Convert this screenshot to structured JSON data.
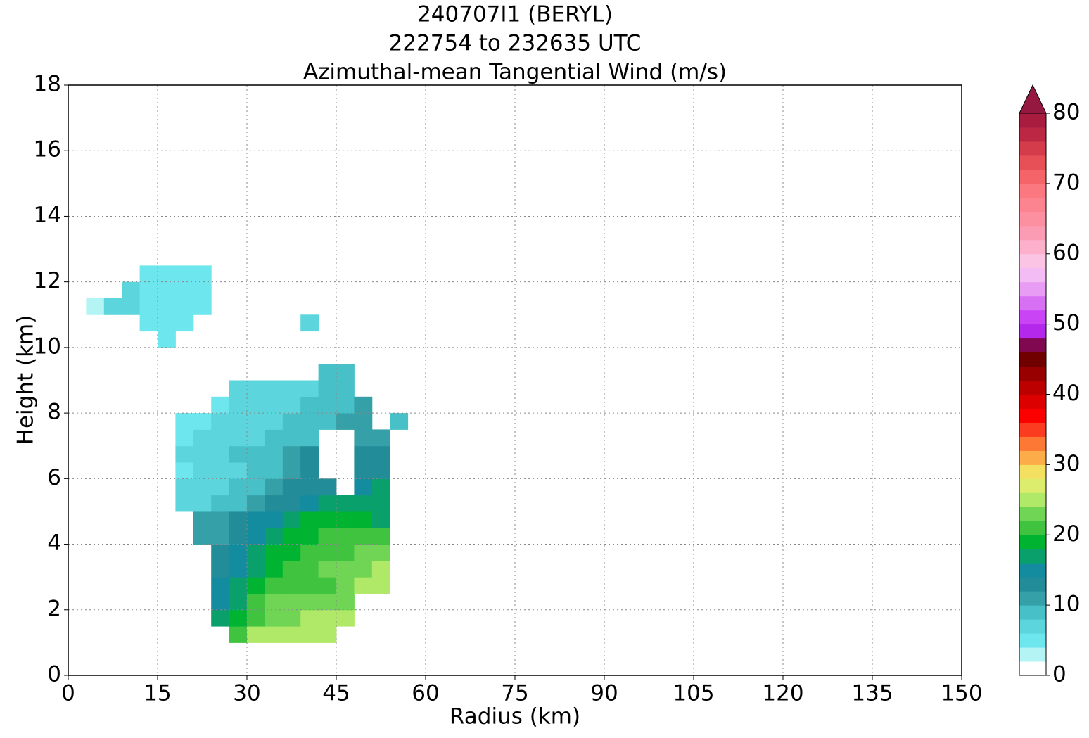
{
  "chart_data": {
    "type": "contourf",
    "title": [
      "240707I1 (BERYL)",
      "222754 to 232635 UTC",
      "Azimuthal-mean Tangential Wind (m/s)"
    ],
    "x_label": "Radius (km)",
    "y_label": "Height (km)",
    "xlim": [
      0,
      150
    ],
    "ylim": [
      0,
      18
    ],
    "xticks": [
      0,
      15,
      30,
      45,
      60,
      75,
      90,
      105,
      120,
      135,
      150
    ],
    "yticks": [
      0,
      2,
      4,
      6,
      8,
      10,
      12,
      14,
      16,
      18
    ],
    "grid": true,
    "x": [
      4.5,
      7.5,
      10.5,
      13.5,
      16.5,
      19.5,
      22.5,
      25.5,
      28.5,
      31.5,
      34.5,
      37.5,
      40.5,
      43.5,
      46.5,
      49.5,
      52.5,
      55.5
    ],
    "y": [
      1.25,
      1.75,
      2.25,
      2.75,
      3.25,
      3.75,
      4.25,
      4.75,
      5.25,
      5.75,
      6.25,
      6.75,
      7.25,
      7.75,
      8.25,
      8.75,
      9.25,
      9.75,
      10.25,
      10.75,
      11.25,
      11.75,
      12.25
    ],
    "z": [
      [
        null,
        null,
        null,
        null,
        null,
        null,
        null,
        null,
        21,
        25,
        25,
        25,
        25,
        25,
        null,
        null,
        null,
        null
      ],
      [
        null,
        null,
        null,
        null,
        null,
        null,
        null,
        17,
        19,
        21,
        23,
        23,
        25,
        25,
        25,
        null,
        null,
        null
      ],
      [
        null,
        null,
        null,
        null,
        null,
        null,
        null,
        15,
        17,
        21,
        23,
        23,
        23,
        23,
        23,
        null,
        null,
        null
      ],
      [
        null,
        null,
        null,
        null,
        null,
        null,
        null,
        15,
        17,
        19,
        21,
        21,
        21,
        21,
        23,
        25,
        25,
        null
      ],
      [
        null,
        null,
        null,
        null,
        null,
        null,
        null,
        13,
        15,
        17,
        19,
        21,
        21,
        23,
        23,
        23,
        25,
        null
      ],
      [
        null,
        null,
        null,
        null,
        null,
        null,
        null,
        13,
        15,
        17,
        19,
        19,
        21,
        21,
        21,
        23,
        23,
        null
      ],
      [
        null,
        null,
        null,
        null,
        null,
        null,
        11,
        11,
        13,
        15,
        17,
        19,
        19,
        21,
        21,
        21,
        21,
        null
      ],
      [
        null,
        null,
        null,
        null,
        null,
        null,
        11,
        11,
        13,
        15,
        15,
        17,
        19,
        19,
        19,
        19,
        17,
        null
      ],
      [
        null,
        null,
        null,
        null,
        null,
        7,
        7,
        9,
        9,
        11,
        13,
        13,
        15,
        17,
        17,
        17,
        17,
        null
      ],
      [
        null,
        null,
        null,
        null,
        null,
        7,
        7,
        7,
        9,
        9,
        11,
        13,
        13,
        13,
        null,
        15,
        17,
        null
      ],
      [
        null,
        null,
        null,
        null,
        null,
        5,
        7,
        7,
        7,
        9,
        9,
        11,
        13,
        null,
        null,
        13,
        13,
        null
      ],
      [
        null,
        null,
        null,
        null,
        null,
        7,
        7,
        7,
        9,
        9,
        9,
        11,
        13,
        null,
        null,
        13,
        13,
        null
      ],
      [
        null,
        null,
        null,
        null,
        null,
        5,
        7,
        7,
        7,
        7,
        9,
        9,
        9,
        null,
        null,
        11,
        11,
        null
      ],
      [
        null,
        null,
        null,
        null,
        null,
        5,
        5,
        7,
        7,
        7,
        7,
        9,
        9,
        9,
        11,
        11,
        null,
        9
      ],
      [
        null,
        null,
        null,
        null,
        null,
        null,
        null,
        5,
        7,
        7,
        7,
        7,
        9,
        9,
        9,
        11,
        null,
        null
      ],
      [
        null,
        null,
        null,
        null,
        null,
        null,
        null,
        null,
        7,
        7,
        7,
        7,
        7,
        9,
        9,
        null,
        null,
        null
      ],
      [
        null,
        null,
        null,
        null,
        null,
        null,
        null,
        null,
        null,
        null,
        null,
        null,
        null,
        9,
        9,
        null,
        null,
        null
      ],
      [
        null,
        null,
        null,
        null,
        null,
        null,
        null,
        null,
        null,
        null,
        null,
        null,
        null,
        null,
        null,
        null,
        null,
        null
      ],
      [
        null,
        null,
        null,
        null,
        5,
        null,
        null,
        null,
        null,
        null,
        null,
        null,
        null,
        null,
        null,
        null,
        null,
        null
      ],
      [
        null,
        null,
        null,
        5,
        5,
        5,
        null,
        null,
        null,
        null,
        null,
        null,
        7,
        null,
        null,
        null,
        null,
        null
      ],
      [
        3,
        7,
        7,
        5,
        5,
        5,
        5,
        null,
        null,
        null,
        null,
        null,
        null,
        null,
        null,
        null,
        null,
        null
      ],
      [
        null,
        null,
        7,
        5,
        5,
        5,
        5,
        null,
        null,
        null,
        null,
        null,
        null,
        null,
        null,
        null,
        null,
        null
      ],
      [
        null,
        null,
        null,
        5,
        5,
        5,
        5,
        null,
        null,
        null,
        null,
        null,
        null,
        null,
        null,
        null,
        null,
        null
      ]
    ],
    "levels": [
      0,
      2,
      4,
      6,
      8,
      10,
      12,
      14,
      16,
      18,
      20,
      22,
      24,
      26,
      28,
      30,
      32,
      34,
      36,
      38,
      40,
      42,
      44,
      46,
      48,
      50,
      52,
      54,
      56,
      58,
      60,
      62,
      64,
      66,
      68,
      70,
      72,
      74,
      76,
      78,
      80
    ],
    "colors": [
      "#ffffff",
      "#b4f4f4",
      "#6ee6ee",
      "#5cd6dc",
      "#48c0c8",
      "#36a0a8",
      "#228c98",
      "#148ca0",
      "#0aa06c",
      "#00b432",
      "#40c440",
      "#70d454",
      "#b0e868",
      "#dcec6c",
      "#f4e060",
      "#fcac48",
      "#fc7834",
      "#fc3c20",
      "#fc0000",
      "#dc0000",
      "#bc0000",
      "#980000",
      "#700000",
      "#800850",
      "#b428ec",
      "#c844f4",
      "#d870f4",
      "#e89cf4",
      "#f4bcf4",
      "#fcc4e4",
      "#fcb0cc",
      "#fc9cb4",
      "#fc90a0",
      "#fc8490",
      "#fc7880",
      "#f46468",
      "#e85058",
      "#d43c4c",
      "#bc2844",
      "#a81c40"
    ],
    "extend_color": "#941840",
    "colorbar_ticks": [
      0,
      10,
      20,
      30,
      40,
      50,
      60,
      70,
      80
    ]
  }
}
